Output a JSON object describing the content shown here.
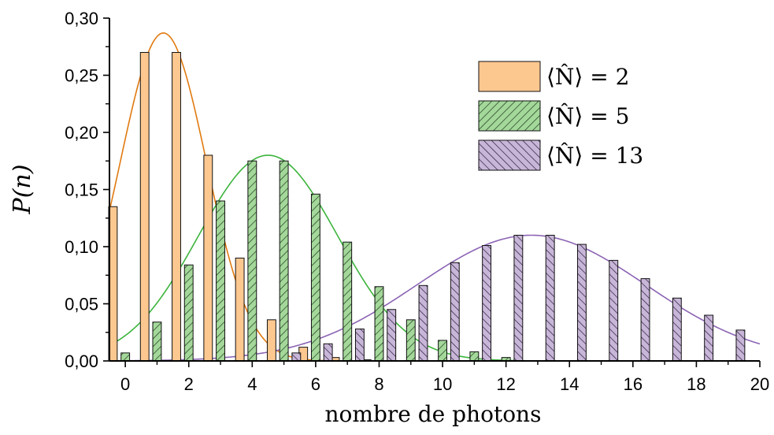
{
  "chart_data": {
    "type": "bar",
    "title": "",
    "xlabel": "nombre de photons",
    "ylabel": "P(n)",
    "xlim": [
      -0.5,
      20
    ],
    "ylim": [
      0,
      0.3
    ],
    "xticks": [
      0,
      2,
      4,
      6,
      8,
      10,
      12,
      14,
      16,
      18,
      20
    ],
    "xtick_labels": [
      "0",
      "2",
      "4",
      "6",
      "8",
      "10",
      "12",
      "14",
      "16",
      "18",
      "20"
    ],
    "yticks": [
      0,
      0.05,
      0.1,
      0.15,
      0.2,
      0.25,
      0.3
    ],
    "ytick_labels": [
      "0,00",
      "0,05",
      "0,10",
      "0,15",
      "0,20",
      "0,25",
      "0,30"
    ],
    "legend_position": "top-right",
    "grid": false,
    "series": [
      {
        "name": "⟨N̂⟩ = 2",
        "mean": 2,
        "color": "#fdc890",
        "stroke": "#e07a10",
        "hatch": "none",
        "x": [
          0,
          1,
          2,
          3,
          4,
          5,
          6,
          7,
          8
        ],
        "values": [
          0.135,
          0.27,
          0.27,
          0.18,
          0.09,
          0.036,
          0.012,
          0.003,
          0.001
        ],
        "fit": {
          "mu": 1.2,
          "sigma": 1.36,
          "amp": 0.287
        }
      },
      {
        "name": "⟨N̂⟩ = 5",
        "mean": 5,
        "color": "#a4d89a",
        "stroke": "#3cb43c",
        "hatch": "forward",
        "x": [
          0,
          1,
          2,
          3,
          4,
          5,
          6,
          7,
          8,
          9,
          10,
          11,
          12
        ],
        "values": [
          0.007,
          0.034,
          0.084,
          0.14,
          0.175,
          0.175,
          0.146,
          0.104,
          0.065,
          0.036,
          0.018,
          0.008,
          0.003
        ],
        "fit": {
          "mu": 4.5,
          "sigma": 2.2,
          "amp": 0.18
        }
      },
      {
        "name": "⟨N̂⟩ = 13",
        "mean": 13,
        "color": "#c8b6d8",
        "stroke": "#8c64b4",
        "hatch": "back",
        "x": [
          5,
          6,
          7,
          8,
          9,
          10,
          11,
          12,
          13,
          14,
          15,
          16,
          17,
          18,
          19
        ],
        "values": [
          0.007,
          0.015,
          0.028,
          0.045,
          0.066,
          0.086,
          0.101,
          0.11,
          0.11,
          0.102,
          0.088,
          0.072,
          0.055,
          0.04,
          0.027
        ],
        "fit": {
          "mu": 12.8,
          "sigma": 3.6,
          "amp": 0.11
        }
      }
    ]
  }
}
